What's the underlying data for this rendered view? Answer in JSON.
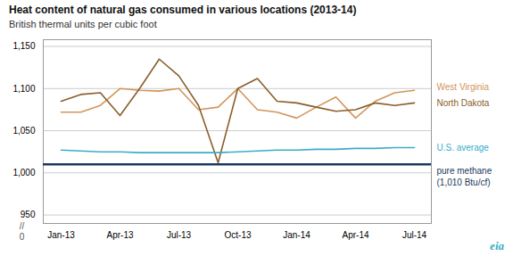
{
  "chart_data": {
    "type": "line",
    "title": "Heat content of natural gas consumed in various locations (2013-14)",
    "subtitle": "British thermal units per cubic foot",
    "categories": [
      "Jan-13",
      null,
      null,
      "Apr-13",
      null,
      null,
      "Jul-13",
      null,
      null,
      "Oct-13",
      null,
      null,
      "Jan-14",
      null,
      null,
      "Apr-14",
      null,
      null,
      "Jul-14"
    ],
    "series": [
      {
        "name": "West Virginia",
        "color": "#D2955A",
        "values": [
          1072,
          1072,
          1080,
          1100,
          1098,
          1097,
          1100,
          1075,
          1078,
          1100,
          1075,
          1072,
          1065,
          1078,
          1090,
          1065,
          1085,
          1095,
          1098
        ]
      },
      {
        "name": "North Dakota",
        "color": "#8B5E2A",
        "values": [
          1085,
          1093,
          1095,
          1068,
          1100,
          1135,
          1115,
          1080,
          1012,
          1100,
          1112,
          1085,
          1083,
          1078,
          1073,
          1075,
          1083,
          1080,
          1083
        ]
      },
      {
        "name": "U.S. average",
        "color": "#3AADC8",
        "values": [
          1027,
          1026,
          1025,
          1025,
          1024,
          1024,
          1024,
          1024,
          1024,
          1025,
          1026,
          1027,
          1027,
          1028,
          1028,
          1029,
          1029,
          1030,
          1030
        ]
      }
    ],
    "reference_lines": [
      {
        "name": "pure methane\n(1,010 Btu/cf)",
        "value": 1010,
        "color": "#1C3A5E"
      }
    ],
    "ylim": [
      940,
      1158
    ],
    "yticks": [
      950,
      {
        "value": 1000,
        "label": "1,000"
      },
      {
        "value": 1050,
        "label": "1,050"
      },
      {
        "value": 1100,
        "label": "1,100"
      },
      {
        "value": 1150,
        "label": "1,150"
      }
    ],
    "grid": true,
    "annotations": [
      {
        "text": "//"
      },
      {
        "text": "0"
      },
      {
        "text": "eia",
        "color": "#3AADC8"
      }
    ]
  }
}
